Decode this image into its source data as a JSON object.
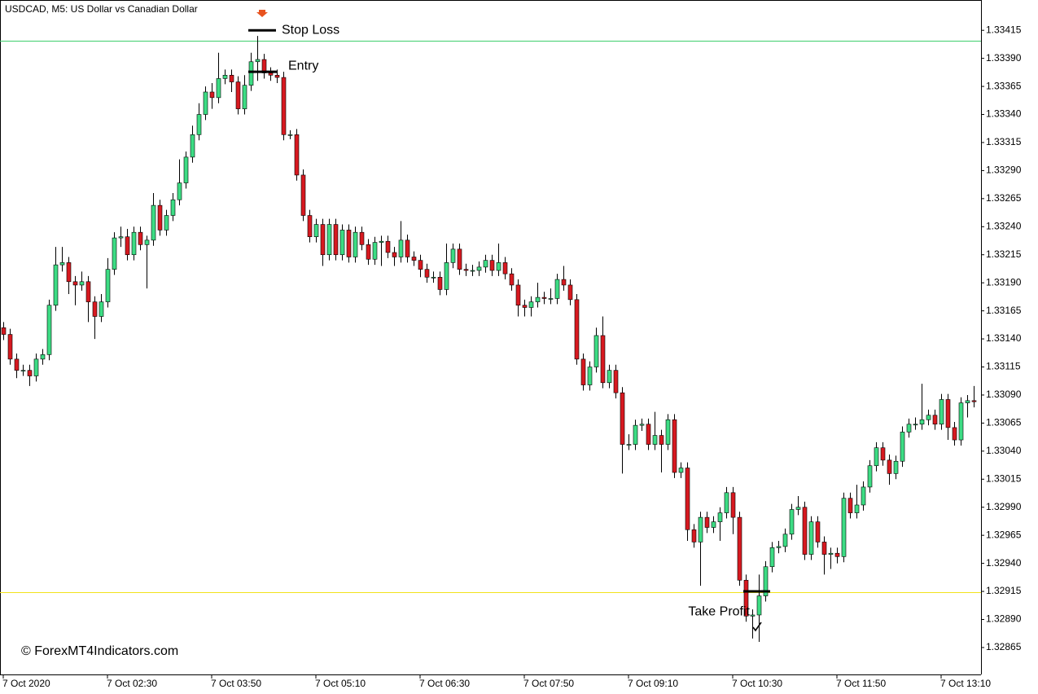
{
  "chart_data": {
    "type": "candlestick",
    "title": "USDCAD, M5:  US Dollar vs Canadian Dollar",
    "watermark": "© ForexMT4Indicators.com",
    "up_color": "#3ddc84",
    "down_color": "#d71920",
    "wick_color": "#000000",
    "categories": [
      "7 Oct 2020",
      null,
      null,
      null,
      null,
      null,
      null,
      null,
      null,
      null,
      null,
      null,
      null,
      null,
      null,
      null,
      "7 Oct 02:30",
      null,
      null,
      null,
      null,
      null,
      null,
      null,
      null,
      null,
      null,
      null,
      null,
      null,
      null,
      null,
      "7 Oct 03:50",
      null,
      null,
      null,
      null,
      null,
      null,
      null,
      null,
      null,
      null,
      null,
      null,
      null,
      null,
      null,
      "7 Oct 05:10",
      null,
      null,
      null,
      null,
      null,
      null,
      null,
      null,
      null,
      null,
      null,
      null,
      null,
      null,
      null,
      "7 Oct 06:30",
      null,
      null,
      null,
      null,
      null,
      null,
      null,
      null,
      null,
      null,
      null,
      null,
      null,
      null,
      null,
      "7 Oct 07:50",
      null,
      null,
      null,
      null,
      null,
      null,
      null,
      null,
      null,
      null,
      null,
      null,
      null,
      null,
      null,
      "7 Oct 09:10",
      null,
      null,
      null,
      null,
      null,
      null,
      null,
      null,
      null,
      null,
      null,
      null,
      null,
      null,
      null,
      "7 Oct 10:30",
      null,
      null,
      null,
      null,
      null,
      null,
      null,
      null,
      null,
      null,
      null,
      null,
      null,
      null,
      null,
      "7 Oct 11:50",
      null,
      null,
      null,
      null,
      null,
      null,
      null,
      null,
      null,
      null,
      null,
      null,
      null,
      null,
      null,
      "7 Oct 13:10",
      null,
      null,
      null,
      null,
      null
    ],
    "open": [
      1.3315,
      1.33144,
      1.33122,
      1.33112,
      1.33112,
      1.33107,
      1.33122,
      1.33126,
      1.3317,
      1.33206,
      1.33208,
      1.33191,
      1.33188,
      1.33191,
      1.33173,
      1.3316,
      1.33173,
      1.33202,
      1.3323,
      1.33231,
      1.33215,
      1.33235,
      1.33224,
      1.33228,
      1.33259,
      1.33237,
      1.3325,
      1.33264,
      1.33279,
      1.33302,
      1.33322,
      1.3334,
      1.3336,
      1.33355,
      1.33372,
      1.33375,
      1.33369,
      1.33345,
      1.33366,
      1.33387,
      1.33389,
      1.33377,
      1.33375,
      1.33373,
      1.33322,
      1.33322,
      1.33286,
      1.3325,
      1.33231,
      1.33242,
      1.33215,
      1.33242,
      1.33215,
      1.33237,
      1.33213,
      1.33235,
      1.33224,
      1.33211,
      1.33226,
      1.33227,
      1.33217,
      1.33213,
      1.33228,
      1.33213,
      1.3321,
      1.33202,
      1.33195,
      1.33195,
      1.33184,
      1.33208,
      1.3322,
      1.33202,
      1.33201,
      1.33201,
      1.33204,
      1.3321,
      1.33201,
      1.33208,
      1.33198,
      1.33188,
      1.3317,
      1.33168,
      1.33173,
      1.33177,
      1.33176,
      1.33176,
      1.33193,
      1.33188,
      1.33175,
      1.33122,
      1.33099,
      1.33115,
      1.33143,
      1.33101,
      1.33112,
      1.33092,
      1.33046,
      1.33046,
      1.33063,
      1.33064,
      1.33046,
      1.33054,
      1.33046,
      1.33068,
      1.33021,
      1.33025,
      1.3297,
      1.32959,
      1.32981,
      1.32972,
      1.32977,
      1.32985,
      1.33003,
      1.32981,
      1.32925,
      1.32893,
      1.32894,
      1.32911,
      1.32937,
      1.32954,
      1.32955,
      1.32966,
      1.32988,
      1.3299,
      1.32948,
      1.32977,
      1.32959,
      1.32948,
      1.32949,
      1.32946,
      1.32998,
      1.32985,
      1.32992,
      1.33008,
      1.33027,
      1.33043,
      1.33032,
      1.3302,
      1.33031,
      1.33057,
      1.33064,
      1.33064,
      1.33068,
      1.33072,
      1.33064,
      1.33086,
      1.33061,
      1.3305,
      1.33083,
      1.33085
    ],
    "high": [
      1.33155,
      1.33149,
      1.33127,
      1.33117,
      1.33117,
      1.33127,
      1.33131,
      1.33175,
      1.33222,
      1.33222,
      1.33213,
      1.33196,
      1.332,
      1.33196,
      1.33178,
      1.3318,
      1.33212,
      1.33235,
      1.3324,
      1.33238,
      1.3324,
      1.3324,
      1.33232,
      1.3327,
      1.33264,
      1.33255,
      1.3327,
      1.333,
      1.33307,
      1.3333,
      1.3335,
      1.33365,
      1.33368,
      1.33395,
      1.3338,
      1.3338,
      1.33374,
      1.33375,
      1.33395,
      1.3341,
      1.33394,
      1.33382,
      1.3338,
      1.33378,
      1.33326,
      1.33327,
      1.33291,
      1.33255,
      1.33247,
      1.33247,
      1.33247,
      1.33247,
      1.33242,
      1.33242,
      1.3324,
      1.3324,
      1.33229,
      1.33231,
      1.33232,
      1.33232,
      1.33222,
      1.33245,
      1.33233,
      1.33218,
      1.33215,
      1.33207,
      1.332,
      1.332,
      1.33225,
      1.33225,
      1.33225,
      1.33207,
      1.33206,
      1.33209,
      1.33215,
      1.33215,
      1.33225,
      1.33213,
      1.33203,
      1.33193,
      1.33175,
      1.33178,
      1.3319,
      1.33182,
      1.33185,
      1.33198,
      1.33205,
      1.33193,
      1.3318,
      1.33127,
      1.3312,
      1.3315,
      1.3316,
      1.33117,
      1.33117,
      1.33097,
      1.33055,
      1.33068,
      1.33069,
      1.33069,
      1.33075,
      1.33059,
      1.33073,
      1.33073,
      1.3303,
      1.3303,
      1.32975,
      1.32986,
      1.32986,
      1.32982,
      1.3299,
      1.33008,
      1.33008,
      1.32986,
      1.3293,
      1.32899,
      1.3293,
      1.32942,
      1.32959,
      1.3296,
      1.32971,
      1.32993,
      1.33,
      1.32995,
      1.32982,
      1.32982,
      1.32964,
      1.32954,
      1.32954,
      1.33003,
      1.33003,
      1.3301,
      1.33013,
      1.33032,
      1.33048,
      1.33048,
      1.33037,
      1.33036,
      1.33062,
      1.33069,
      1.3307,
      1.331,
      1.33077,
      1.33077,
      1.33091,
      1.33091,
      1.33066,
      1.33088,
      1.3309,
      1.33098
    ],
    "low": [
      1.33139,
      1.33117,
      1.33105,
      1.33107,
      1.33098,
      1.33102,
      1.33117,
      1.33121,
      1.33165,
      1.332,
      1.3318,
      1.3317,
      1.33183,
      1.33155,
      1.3314,
      1.33155,
      1.33168,
      1.33197,
      1.33222,
      1.3321,
      1.3321,
      1.33219,
      1.33185,
      1.33223,
      1.33232,
      1.33232,
      1.33245,
      1.33259,
      1.33274,
      1.33297,
      1.33317,
      1.33335,
      1.33345,
      1.3335,
      1.33367,
      1.3336,
      1.3334,
      1.3334,
      1.33361,
      1.3337,
      1.33372,
      1.3337,
      1.33368,
      1.33317,
      1.33318,
      1.33281,
      1.33245,
      1.33226,
      1.33226,
      1.33205,
      1.3321,
      1.3321,
      1.3321,
      1.33208,
      1.33208,
      1.33219,
      1.33206,
      1.33206,
      1.33205,
      1.33212,
      1.33205,
      1.33208,
      1.33208,
      1.33205,
      1.33195,
      1.3319,
      1.3319,
      1.33179,
      1.33179,
      1.33203,
      1.33197,
      1.33196,
      1.33196,
      1.33196,
      1.33199,
      1.33196,
      1.33196,
      1.33193,
      1.33183,
      1.3316,
      1.3316,
      1.3316,
      1.33168,
      1.33171,
      1.33171,
      1.33171,
      1.33183,
      1.3317,
      1.33117,
      1.33094,
      1.33094,
      1.3311,
      1.33096,
      1.33096,
      1.33087,
      1.3302,
      1.33041,
      1.33041,
      1.33058,
      1.33041,
      1.33041,
      1.33021,
      1.33041,
      1.33016,
      1.33016,
      1.3296,
      1.32954,
      1.3292,
      1.32967,
      1.32967,
      1.3296,
      1.3298,
      1.32966,
      1.3292,
      1.32888,
      1.32873,
      1.3287,
      1.32906,
      1.32932,
      1.32949,
      1.3295,
      1.32961,
      1.32983,
      1.32943,
      1.32943,
      1.32954,
      1.3293,
      1.32935,
      1.3294,
      1.32941,
      1.3298,
      1.3298,
      1.32987,
      1.33003,
      1.33022,
      1.33027,
      1.3301,
      1.33015,
      1.33026,
      1.33052,
      1.33059,
      1.33059,
      1.33063,
      1.33059,
      1.33059,
      1.3305,
      1.33045,
      1.33045,
      1.3307,
      1.33079
    ],
    "close": [
      1.33144,
      1.33122,
      1.33112,
      1.33112,
      1.33107,
      1.33122,
      1.33126,
      1.3317,
      1.33206,
      1.33208,
      1.33191,
      1.33188,
      1.33191,
      1.33173,
      1.3316,
      1.33173,
      1.33202,
      1.3323,
      1.33231,
      1.33215,
      1.33235,
      1.33224,
      1.33228,
      1.33259,
      1.33237,
      1.3325,
      1.33264,
      1.33279,
      1.33302,
      1.33322,
      1.3334,
      1.3336,
      1.33355,
      1.33372,
      1.33375,
      1.33369,
      1.33345,
      1.33366,
      1.33387,
      1.33389,
      1.33377,
      1.33375,
      1.33373,
      1.33322,
      1.33322,
      1.33286,
      1.3325,
      1.33231,
      1.33242,
      1.33215,
      1.33242,
      1.33215,
      1.33237,
      1.33213,
      1.33235,
      1.33224,
      1.33211,
      1.33226,
      1.33227,
      1.33217,
      1.33213,
      1.33228,
      1.33213,
      1.3321,
      1.33202,
      1.33195,
      1.33195,
      1.33184,
      1.33208,
      1.3322,
      1.33202,
      1.33201,
      1.33201,
      1.33204,
      1.3321,
      1.33201,
      1.33208,
      1.33198,
      1.33188,
      1.3317,
      1.33168,
      1.33173,
      1.33177,
      1.33176,
      1.33176,
      1.33193,
      1.33188,
      1.33175,
      1.33122,
      1.33099,
      1.33115,
      1.33143,
      1.33101,
      1.33112,
      1.33092,
      1.33046,
      1.33046,
      1.33063,
      1.33064,
      1.33046,
      1.33054,
      1.33046,
      1.33068,
      1.33021,
      1.33025,
      1.3297,
      1.32959,
      1.32981,
      1.32972,
      1.32977,
      1.32985,
      1.33003,
      1.32981,
      1.32925,
      1.32893,
      1.32894,
      1.32911,
      1.32937,
      1.32954,
      1.32955,
      1.32966,
      1.32988,
      1.3299,
      1.32948,
      1.32977,
      1.32959,
      1.32948,
      1.32949,
      1.32946,
      1.32998,
      1.32985,
      1.32992,
      1.33008,
      1.33027,
      1.33043,
      1.33032,
      1.3302,
      1.33031,
      1.33057,
      1.33064,
      1.33064,
      1.33068,
      1.33072,
      1.33064,
      1.33086,
      1.33061,
      1.3305,
      1.33083,
      1.33085,
      1.33084
    ],
    "ylim": [
      1.32841,
      1.33442
    ],
    "yticks": [
      1.33415,
      {
        "value": 1.3339,
        "label": "1.33390"
      },
      1.33365,
      {
        "value": 1.3334,
        "label": "1.33340"
      },
      1.33315,
      {
        "value": 1.3329,
        "label": "1.33290"
      },
      1.33265,
      {
        "value": 1.3324,
        "label": "1.33240"
      },
      1.33215,
      {
        "value": 1.3319,
        "label": "1.33190"
      },
      1.33165,
      {
        "value": 1.3314,
        "label": "1.33140"
      },
      1.33115,
      {
        "value": 1.3309,
        "label": "1.33090"
      },
      1.33065,
      {
        "value": 1.3304,
        "label": "1.33040"
      },
      1.33015,
      {
        "value": 1.3299,
        "label": "1.32990"
      },
      1.32965,
      {
        "value": 1.3294,
        "label": "1.32940"
      },
      1.32915,
      {
        "value": 1.3289,
        "label": "1.32890"
      },
      1.32865
    ],
    "hlines": [
      {
        "value": 1.33406,
        "color": "#3ecf6e"
      },
      {
        "value": 1.32914,
        "color": "#f2e21c"
      }
    ],
    "stop_loss": {
      "label": "Stop Loss",
      "value": 1.33415
    },
    "entry": {
      "label": "Entry",
      "value": 1.33378
    },
    "take_profit": {
      "label": "Take Profit",
      "value": 1.32915
    }
  }
}
